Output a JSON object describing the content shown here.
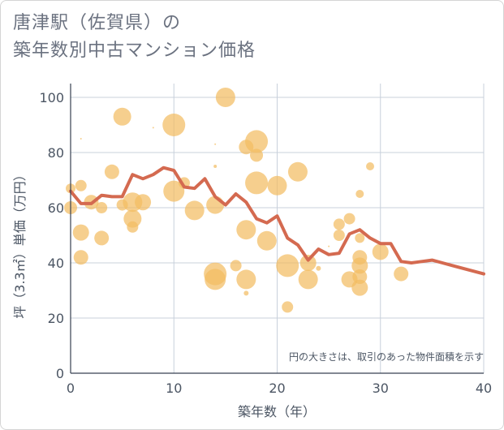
{
  "title": {
    "line1": "唐津駅（佐賀県）の",
    "line2": "築年数別中古マンション価格"
  },
  "chart_data": {
    "type": "scatter",
    "xlabel": "築年数（年）",
    "ylabel": "坪（3.3㎡）単価（万円）",
    "xlim": [
      0,
      40
    ],
    "ylim": [
      0,
      105
    ],
    "xticks": [
      0,
      10,
      20,
      30,
      40
    ],
    "yticks": [
      0,
      20,
      40,
      60,
      80,
      100
    ],
    "grid": true,
    "annotation": "円の大きさは、取引のあった物件面積を示す",
    "colors": {
      "bubble": "#f2bd63",
      "line": "#d46a50",
      "grid": "#c8d0db"
    },
    "bubbles": [
      {
        "x": 0,
        "y": 60,
        "s": 8
      },
      {
        "x": 0,
        "y": 67,
        "s": 6
      },
      {
        "x": 1,
        "y": 68,
        "s": 7
      },
      {
        "x": 1,
        "y": 51,
        "s": 10
      },
      {
        "x": 1,
        "y": 42,
        "s": 9
      },
      {
        "x": 1,
        "y": 85,
        "s": 1
      },
      {
        "x": 2,
        "y": 62,
        "s": 9
      },
      {
        "x": 3,
        "y": 60,
        "s": 7
      },
      {
        "x": 3,
        "y": 49,
        "s": 9
      },
      {
        "x": 4,
        "y": 73,
        "s": 9
      },
      {
        "x": 5,
        "y": 93,
        "s": 11
      },
      {
        "x": 5,
        "y": 61,
        "s": 7
      },
      {
        "x": 6,
        "y": 62,
        "s": 12
      },
      {
        "x": 6,
        "y": 56,
        "s": 11
      },
      {
        "x": 6,
        "y": 53,
        "s": 7
      },
      {
        "x": 7,
        "y": 62,
        "s": 10
      },
      {
        "x": 8,
        "y": 89,
        "s": 1
      },
      {
        "x": 10,
        "y": 90,
        "s": 14
      },
      {
        "x": 10,
        "y": 66,
        "s": 13
      },
      {
        "x": 11,
        "y": 69,
        "s": 7
      },
      {
        "x": 12,
        "y": 59,
        "s": 12
      },
      {
        "x": 14,
        "y": 61,
        "s": 11
      },
      {
        "x": 14,
        "y": 36,
        "s": 14
      },
      {
        "x": 14,
        "y": 34,
        "s": 13
      },
      {
        "x": 14,
        "y": 75,
        "s": 2
      },
      {
        "x": 14,
        "y": 83,
        "s": 1
      },
      {
        "x": 15,
        "y": 100,
        "s": 12
      },
      {
        "x": 16,
        "y": 39,
        "s": 7
      },
      {
        "x": 17,
        "y": 82,
        "s": 9
      },
      {
        "x": 17,
        "y": 52,
        "s": 12
      },
      {
        "x": 17,
        "y": 34,
        "s": 12
      },
      {
        "x": 17,
        "y": 29,
        "s": 3
      },
      {
        "x": 18,
        "y": 84,
        "s": 14
      },
      {
        "x": 18,
        "y": 79,
        "s": 8
      },
      {
        "x": 18,
        "y": 69,
        "s": 14
      },
      {
        "x": 19,
        "y": 48,
        "s": 12
      },
      {
        "x": 20,
        "y": 68,
        "s": 12
      },
      {
        "x": 21,
        "y": 39,
        "s": 14
      },
      {
        "x": 21,
        "y": 24,
        "s": 7
      },
      {
        "x": 22,
        "y": 73,
        "s": 12
      },
      {
        "x": 23,
        "y": 40,
        "s": 10
      },
      {
        "x": 23,
        "y": 34,
        "s": 12
      },
      {
        "x": 24,
        "y": 38,
        "s": 3
      },
      {
        "x": 25,
        "y": 46,
        "s": 1
      },
      {
        "x": 26,
        "y": 54,
        "s": 7
      },
      {
        "x": 26,
        "y": 50,
        "s": 7
      },
      {
        "x": 27,
        "y": 56,
        "s": 7
      },
      {
        "x": 27,
        "y": 34,
        "s": 10
      },
      {
        "x": 28,
        "y": 65,
        "s": 5
      },
      {
        "x": 28,
        "y": 49,
        "s": 6
      },
      {
        "x": 28,
        "y": 42,
        "s": 9
      },
      {
        "x": 28,
        "y": 39,
        "s": 10
      },
      {
        "x": 28,
        "y": 35,
        "s": 9
      },
      {
        "x": 28,
        "y": 31,
        "s": 10
      },
      {
        "x": 29,
        "y": 75,
        "s": 5
      },
      {
        "x": 30,
        "y": 44,
        "s": 10
      },
      {
        "x": 32,
        "y": 36,
        "s": 9
      }
    ],
    "line": {
      "x": [
        0,
        1,
        2,
        3,
        4,
        5,
        6,
        7,
        8,
        9,
        10,
        11,
        12,
        13,
        14,
        15,
        16,
        17,
        18,
        19,
        20,
        21,
        22,
        23,
        24,
        25,
        26,
        27,
        28,
        29,
        30,
        31,
        32,
        33,
        34,
        35,
        36,
        37,
        38,
        39,
        40
      ],
      "y": [
        66,
        61.5,
        61.5,
        64.5,
        64,
        64,
        72,
        70.5,
        72,
        74.5,
        73.5,
        67.5,
        67,
        70.5,
        64,
        61,
        65,
        62,
        56,
        54.5,
        57,
        49,
        46.5,
        41,
        45,
        43,
        43.5,
        50.5,
        52,
        49,
        47,
        47,
        40.5,
        40,
        40.5,
        41,
        40,
        39,
        38,
        37,
        36
      ]
    }
  }
}
